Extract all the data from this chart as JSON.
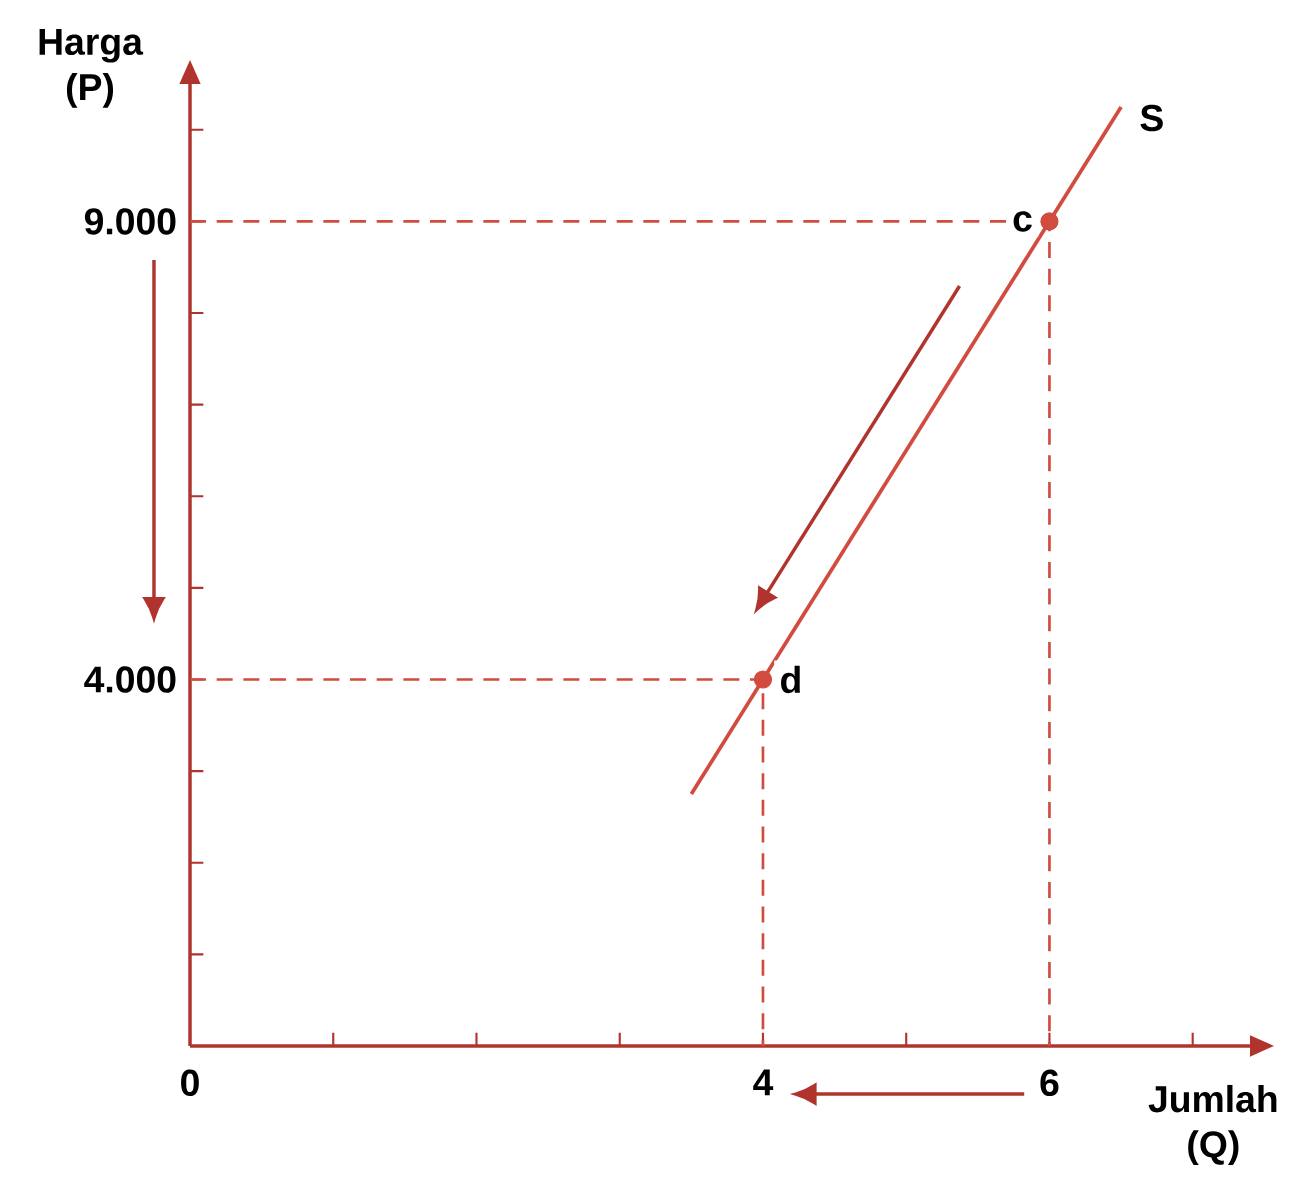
{
  "chart_data": {
    "type": "line",
    "xlabel": "Jumlah (Q)",
    "ylabel": "Harga (P)",
    "xlim": [
      0,
      7.4
    ],
    "ylim": [
      0,
      10500
    ],
    "xticks": [
      0,
      {
        "value": 1,
        "label": null
      },
      {
        "value": 2,
        "label": null
      },
      {
        "value": 3,
        "label": null
      },
      4,
      {
        "value": 5,
        "label": null
      },
      6,
      {
        "value": 7,
        "label": null
      }
    ],
    "yticks": [
      {
        "value": 1000,
        "label": null
      },
      {
        "value": 2000,
        "label": null
      },
      {
        "value": 3000,
        "label": null
      },
      {
        "value": 4000,
        "label": "4.000"
      },
      {
        "value": 5000,
        "label": null
      },
      {
        "value": 6000,
        "label": null
      },
      {
        "value": 7000,
        "label": null
      },
      {
        "value": 8000,
        "label": null
      },
      {
        "value": 9000,
        "label": "9.000"
      },
      {
        "value": 10000,
        "label": null
      }
    ],
    "series": [
      {
        "name": "S",
        "color": "#d24b3f",
        "x": [
          3.5,
          6.5
        ],
        "values": [
          2750,
          10250
        ],
        "line_style": "solid",
        "marker": "none"
      },
      {
        "color": "#d24b3f",
        "x": [
          0,
          6,
          6
        ],
        "values": [
          9000,
          9000,
          0
        ],
        "line_style": "dashed",
        "marker": "none"
      },
      {
        "color": "#d24b3f",
        "x": [
          0,
          4,
          4
        ],
        "values": [
          4000,
          4000,
          0
        ],
        "line_style": "dashed",
        "marker": "none"
      },
      {
        "type": "scatter",
        "color": "#d24b3f",
        "x": [
          4,
          6
        ],
        "values": [
          4000,
          9000
        ],
        "marker": "circle"
      }
    ],
    "annotations": [
      {
        "text": "c",
        "x": 6,
        "y": 9000
      },
      {
        "text": "d",
        "x": 4,
        "y": 4000
      }
    ]
  }
}
